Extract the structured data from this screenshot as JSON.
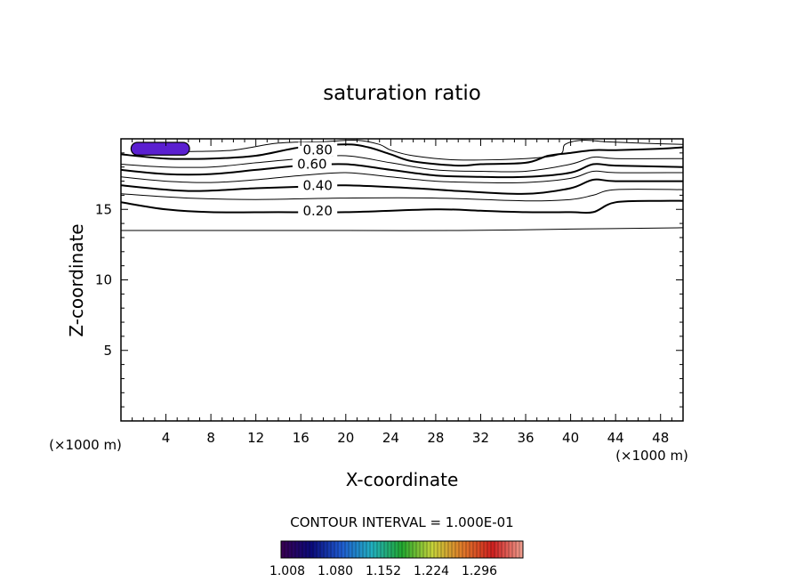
{
  "chart_data": {
    "type": "contour",
    "title": "saturation ratio",
    "xlabel": "X-coordinate",
    "ylabel": "Z-coordinate",
    "x_unit_left": "(×1000 m)",
    "x_unit_right": "(×1000 m)",
    "xlim": [
      0,
      50
    ],
    "ylim": [
      0,
      20
    ],
    "xticks": [
      4,
      8,
      12,
      16,
      20,
      24,
      28,
      32,
      36,
      40,
      44,
      48
    ],
    "xtick_labels": [
      "4",
      "8",
      "12",
      "16",
      "20",
      "24",
      "28",
      "32",
      "36",
      "40",
      "44",
      "48"
    ],
    "yticks": [
      5,
      10,
      15
    ],
    "ytick_labels": [
      "5",
      "10",
      "15"
    ],
    "contour_interval_text": "CONTOUR INTERVAL = 1.000E-01",
    "contour_labels": [
      {
        "text": "0.80",
        "x": 17.5,
        "y": 19.2
      },
      {
        "text": "0.60",
        "x": 17.0,
        "y": 18.2
      },
      {
        "text": "0.40",
        "x": 17.5,
        "y": 16.7
      },
      {
        "text": "0.20",
        "x": 17.5,
        "y": 14.9
      }
    ],
    "contours": [
      {
        "level": 0.1,
        "bold": false,
        "x": [
          0,
          10,
          20,
          30,
          40,
          50
        ],
        "z": [
          13.5,
          13.5,
          13.5,
          13.5,
          13.6,
          13.7
        ]
      },
      {
        "level": 0.2,
        "bold": true,
        "x": [
          0,
          4,
          8,
          14,
          20,
          28,
          32,
          36,
          40,
          42,
          44,
          48,
          50
        ],
        "z": [
          15.5,
          15.0,
          14.8,
          14.8,
          14.8,
          15.0,
          14.9,
          14.8,
          14.8,
          14.8,
          15.5,
          15.6,
          15.6
        ]
      },
      {
        "level": 0.3,
        "bold": false,
        "x": [
          0,
          6,
          12,
          20,
          28,
          36,
          40,
          42,
          44,
          50
        ],
        "z": [
          16.1,
          15.8,
          15.7,
          15.8,
          15.8,
          15.6,
          15.7,
          16.0,
          16.4,
          16.4
        ]
      },
      {
        "level": 0.4,
        "bold": true,
        "x": [
          0,
          6,
          12,
          16,
          20,
          26,
          30,
          36,
          40,
          42,
          44,
          50
        ],
        "z": [
          16.7,
          16.3,
          16.5,
          16.6,
          16.7,
          16.5,
          16.3,
          16.1,
          16.5,
          17.1,
          17.0,
          17.0
        ]
      },
      {
        "level": 0.5,
        "bold": false,
        "x": [
          0,
          4,
          8,
          12,
          16,
          20,
          24,
          28,
          32,
          36,
          40,
          42,
          44,
          50
        ],
        "z": [
          17.3,
          17.0,
          16.9,
          17.1,
          17.4,
          17.6,
          17.3,
          17.0,
          16.9,
          16.9,
          17.2,
          17.7,
          17.6,
          17.6
        ]
      },
      {
        "level": 0.6,
        "bold": true,
        "x": [
          0,
          4,
          8,
          12,
          16,
          20,
          24,
          28,
          32,
          36,
          40,
          42,
          44,
          50
        ],
        "z": [
          17.8,
          17.5,
          17.5,
          17.8,
          18.1,
          18.2,
          17.8,
          17.4,
          17.3,
          17.3,
          17.6,
          18.2,
          18.1,
          18.0
        ]
      },
      {
        "level": 0.7,
        "bold": false,
        "x": [
          0,
          4,
          8,
          12,
          16,
          20,
          24,
          28,
          32,
          36,
          40,
          42,
          44,
          50
        ],
        "z": [
          18.2,
          18.0,
          18.0,
          18.3,
          18.6,
          18.8,
          18.3,
          17.8,
          17.7,
          17.7,
          18.2,
          18.7,
          18.6,
          18.6
        ]
      },
      {
        "level": 0.8,
        "bold": true,
        "x": [
          0,
          4,
          8,
          12,
          16,
          20,
          22,
          24,
          26,
          30,
          32,
          36,
          38,
          40,
          42,
          44,
          48,
          50
        ],
        "z": [
          18.9,
          18.6,
          18.6,
          18.8,
          19.4,
          19.6,
          19.4,
          18.9,
          18.4,
          18.1,
          18.2,
          18.3,
          18.8,
          19.0,
          19.2,
          19.2,
          19.3,
          19.4
        ]
      },
      {
        "level": 0.9,
        "bold": false,
        "x": [
          6,
          10,
          14,
          18,
          21,
          23,
          24,
          26,
          30,
          36,
          39,
          39.5,
          41,
          43,
          46,
          50
        ],
        "z": [
          19.1,
          19.2,
          19.7,
          19.8,
          19.9,
          19.6,
          19.2,
          18.8,
          18.5,
          18.6,
          18.9,
          19.6,
          19.9,
          19.8,
          19.7,
          19.6
        ]
      }
    ],
    "filled_regions": [
      {
        "x_center": 3.5,
        "z_center": 19.3,
        "x_halfwidth": 2.6,
        "z_halfheight": 0.45,
        "value": 1.01
      }
    ],
    "colorbar": {
      "range": [
        1.008,
        1.296
      ],
      "labels": [
        "1.008",
        "1.080",
        "1.152",
        "1.224",
        "1.296"
      ],
      "colors": [
        "#3a0050",
        "#0a0a7a",
        "#1f5bd0",
        "#22b0c0",
        "#22a830",
        "#c7d43a",
        "#e07a2a",
        "#d02020",
        "#f0a090"
      ]
    }
  }
}
